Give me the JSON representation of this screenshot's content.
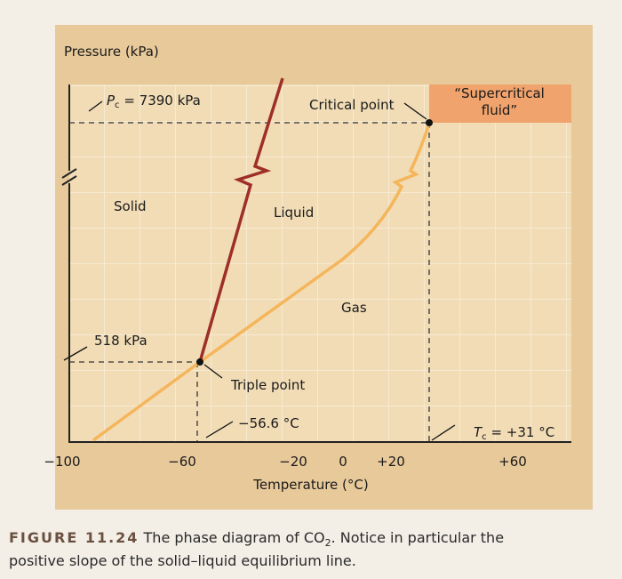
{
  "axis_title_y": "Pressure (kPa)",
  "critical_pressure": {
    "symbol": "P",
    "subscript": "c",
    "text": " = 7390 kPa"
  },
  "critical_point": "Critical point",
  "supercritical": [
    "“Supercritical",
    "fluid”"
  ],
  "regions": {
    "solid": "Solid",
    "liquid": "Liquid",
    "gas": "Gas"
  },
  "triple_pressure": "518 kPa",
  "triple_point": "Triple point",
  "triple_temperature": "−56.6 °C",
  "critical_temperature": {
    "symbol": "T",
    "subscript": "c",
    "text": " = +31 °C"
  },
  "x_ticks": [
    "−100",
    "−60",
    "−20",
    "0",
    "+20",
    "+60"
  ],
  "axis_title_x": "Temperature (°C)",
  "caption": {
    "label": "FIGURE 11.24",
    "text_1": " The phase diagram of CO",
    "subscript": "2",
    "text_2": ". Notice in particular the",
    "line_2": "positive slope of the solid–liquid equilibrium line."
  }
}
